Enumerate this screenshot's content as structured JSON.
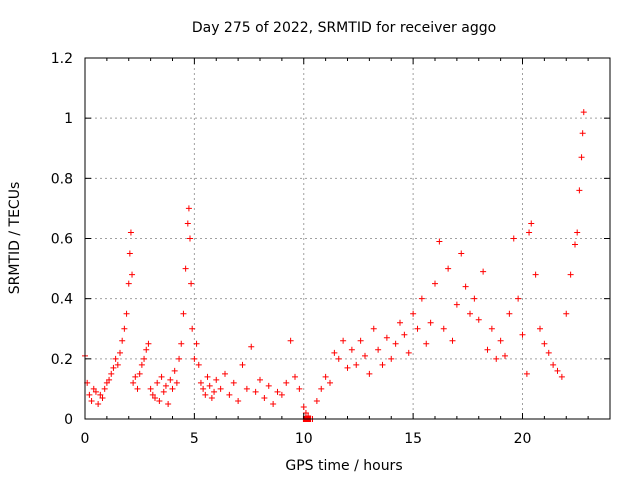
{
  "chart_data": {
    "type": "scatter",
    "title": "Day 275 of 2022, SRMTID for receiver aggo",
    "xlabel": "GPS time / hours",
    "ylabel": "SRMTID / TECUs",
    "xlim": [
      0,
      24
    ],
    "ylim": [
      0,
      1.2
    ],
    "xticks": [
      0,
      5,
      10,
      15,
      20
    ],
    "xtick_labels": [
      "0",
      "5",
      "10",
      "15",
      "20"
    ],
    "yticks": [
      0,
      0.2,
      0.4,
      0.6,
      0.8,
      1,
      1.2
    ],
    "ytick_labels": [
      "0",
      "0.2",
      "0.4",
      "0.6",
      "0.8",
      "1",
      "1.2"
    ],
    "grid": true,
    "marker": "plus",
    "color": "#ff0000",
    "series": [
      {
        "name": "SRMTID",
        "x": [
          0.0,
          0.1,
          0.2,
          0.3,
          0.4,
          0.5,
          0.6,
          0.7,
          0.8,
          0.9,
          1.0,
          1.1,
          1.2,
          1.3,
          1.4,
          1.5,
          1.6,
          1.7,
          1.8,
          1.9,
          2.0,
          2.05,
          2.1,
          2.15,
          2.2,
          2.3,
          2.4,
          2.5,
          2.6,
          2.7,
          2.8,
          2.9,
          3.0,
          3.1,
          3.2,
          3.3,
          3.4,
          3.5,
          3.6,
          3.7,
          3.8,
          3.9,
          4.0,
          4.1,
          4.2,
          4.3,
          4.4,
          4.5,
          4.6,
          4.7,
          4.75,
          4.8,
          4.85,
          4.9,
          5.0,
          5.1,
          5.2,
          5.3,
          5.4,
          5.5,
          5.6,
          5.7,
          5.8,
          5.9,
          6.0,
          6.2,
          6.4,
          6.6,
          6.8,
          7.0,
          7.2,
          7.4,
          7.6,
          7.8,
          8.0,
          8.2,
          8.4,
          8.6,
          8.8,
          9.0,
          9.2,
          9.4,
          9.6,
          9.8,
          10.0,
          10.1,
          10.2,
          10.3,
          10.4,
          10.6,
          10.8,
          11.0,
          11.2,
          11.4,
          11.6,
          11.8,
          12.0,
          12.2,
          12.4,
          12.6,
          12.8,
          13.0,
          13.2,
          13.4,
          13.6,
          13.8,
          14.0,
          14.2,
          14.4,
          14.6,
          14.8,
          15.0,
          15.2,
          15.4,
          15.6,
          15.8,
          16.0,
          16.2,
          16.4,
          16.6,
          16.8,
          17.0,
          17.2,
          17.4,
          17.6,
          17.8,
          18.0,
          18.2,
          18.4,
          18.6,
          18.8,
          19.0,
          19.2,
          19.4,
          19.6,
          19.8,
          20.0,
          20.2,
          20.3,
          20.4,
          20.6,
          20.8,
          21.0,
          21.2,
          21.4,
          21.6,
          21.8,
          22.0,
          22.2,
          22.4,
          22.5,
          22.6,
          22.7,
          22.75,
          22.8
        ],
        "y": [
          0.21,
          0.12,
          0.08,
          0.06,
          0.1,
          0.09,
          0.05,
          0.08,
          0.07,
          0.1,
          0.12,
          0.13,
          0.15,
          0.17,
          0.2,
          0.18,
          0.22,
          0.26,
          0.3,
          0.35,
          0.45,
          0.55,
          0.62,
          0.48,
          0.12,
          0.14,
          0.1,
          0.15,
          0.18,
          0.2,
          0.23,
          0.25,
          0.1,
          0.08,
          0.07,
          0.12,
          0.06,
          0.14,
          0.09,
          0.11,
          0.05,
          0.13,
          0.1,
          0.16,
          0.12,
          0.2,
          0.25,
          0.35,
          0.5,
          0.65,
          0.7,
          0.6,
          0.45,
          0.3,
          0.2,
          0.25,
          0.18,
          0.12,
          0.1,
          0.08,
          0.14,
          0.11,
          0.07,
          0.09,
          0.13,
          0.1,
          0.15,
          0.08,
          0.12,
          0.06,
          0.18,
          0.1,
          0.24,
          0.09,
          0.13,
          0.07,
          0.11,
          0.05,
          0.09,
          0.08,
          0.12,
          0.26,
          0.14,
          0.1,
          0.04,
          0.02,
          0.01,
          0.0,
          0.0,
          0.06,
          0.1,
          0.14,
          0.12,
          0.22,
          0.2,
          0.26,
          0.17,
          0.23,
          0.18,
          0.26,
          0.21,
          0.15,
          0.3,
          0.23,
          0.18,
          0.27,
          0.2,
          0.25,
          0.32,
          0.28,
          0.22,
          0.35,
          0.3,
          0.4,
          0.25,
          0.32,
          0.45,
          0.59,
          0.3,
          0.5,
          0.26,
          0.38,
          0.55,
          0.44,
          0.35,
          0.4,
          0.33,
          0.49,
          0.23,
          0.3,
          0.2,
          0.26,
          0.21,
          0.35,
          0.6,
          0.4,
          0.28,
          0.15,
          0.62,
          0.65,
          0.48,
          0.3,
          0.25,
          0.22,
          0.18,
          0.16,
          0.14,
          0.35,
          0.48,
          0.58,
          0.62,
          0.76,
          0.87,
          0.95,
          1.02
        ]
      }
    ],
    "extra_markers": [
      {
        "x": 10.1,
        "y": 0.0,
        "shape": "square"
      },
      {
        "x": 10.2,
        "y": 0.0,
        "shape": "square"
      }
    ]
  }
}
